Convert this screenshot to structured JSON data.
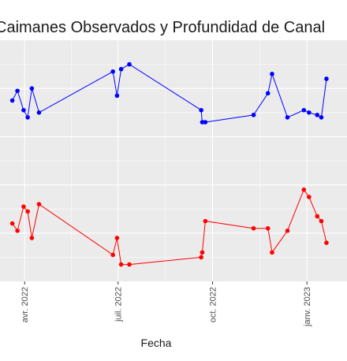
{
  "chart_data": {
    "type": "line",
    "title": "Caimanes Observados y Profundidad de Canal",
    "xlabel": "Fecha",
    "ylabel": "",
    "x_ticks": [
      {
        "date": "2022-04-01",
        "label": "avr. 2022"
      },
      {
        "date": "2022-07-01",
        "label": "juil. 2022"
      },
      {
        "date": "2022-10-01",
        "label": "oct. 2022"
      },
      {
        "date": "2023-01-01",
        "label": "janv. 2023"
      }
    ],
    "xlim": [
      "2022-03-08",
      "2023-02-09"
    ],
    "ylim": [
      0,
      100
    ],
    "grid": true,
    "series": [
      {
        "color": "#0000ff",
        "points": [
          {
            "x": "2022-03-20",
            "y": 75
          },
          {
            "x": "2022-03-25",
            "y": 79
          },
          {
            "x": "2022-03-31",
            "y": 71
          },
          {
            "x": "2022-04-04",
            "y": 68
          },
          {
            "x": "2022-04-08",
            "y": 80
          },
          {
            "x": "2022-04-15",
            "y": 70
          },
          {
            "x": "2022-06-26",
            "y": 87
          },
          {
            "x": "2022-06-30",
            "y": 77
          },
          {
            "x": "2022-07-04",
            "y": 88
          },
          {
            "x": "2022-07-12",
            "y": 90
          },
          {
            "x": "2022-09-20",
            "y": 71
          },
          {
            "x": "2022-09-21",
            "y": 66
          },
          {
            "x": "2022-09-24",
            "y": 66
          },
          {
            "x": "2022-11-10",
            "y": 69
          },
          {
            "x": "2022-11-24",
            "y": 78
          },
          {
            "x": "2022-11-28",
            "y": 86
          },
          {
            "x": "2022-12-13",
            "y": 68
          },
          {
            "x": "2022-12-29",
            "y": 71
          },
          {
            "x": "2023-01-03",
            "y": 70
          },
          {
            "x": "2023-01-11",
            "y": 69
          },
          {
            "x": "2023-01-15",
            "y": 68
          },
          {
            "x": "2023-01-20",
            "y": 84
          }
        ]
      },
      {
        "color": "#ff0000",
        "points": [
          {
            "x": "2022-03-20",
            "y": 24
          },
          {
            "x": "2022-03-25",
            "y": 21
          },
          {
            "x": "2022-03-31",
            "y": 31
          },
          {
            "x": "2022-04-04",
            "y": 29
          },
          {
            "x": "2022-04-08",
            "y": 18
          },
          {
            "x": "2022-04-15",
            "y": 32
          },
          {
            "x": "2022-06-26",
            "y": 11
          },
          {
            "x": "2022-06-30",
            "y": 18
          },
          {
            "x": "2022-07-04",
            "y": 7
          },
          {
            "x": "2022-07-12",
            "y": 7
          },
          {
            "x": "2022-09-20",
            "y": 10
          },
          {
            "x": "2022-09-21",
            "y": 12
          },
          {
            "x": "2022-09-24",
            "y": 25
          },
          {
            "x": "2022-11-10",
            "y": 22
          },
          {
            "x": "2022-11-24",
            "y": 22
          },
          {
            "x": "2022-11-28",
            "y": 12
          },
          {
            "x": "2022-12-13",
            "y": 21
          },
          {
            "x": "2022-12-29",
            "y": 38
          },
          {
            "x": "2023-01-03",
            "y": 35
          },
          {
            "x": "2023-01-11",
            "y": 27
          },
          {
            "x": "2023-01-15",
            "y": 25
          },
          {
            "x": "2023-01-20",
            "y": 16
          }
        ]
      }
    ]
  }
}
